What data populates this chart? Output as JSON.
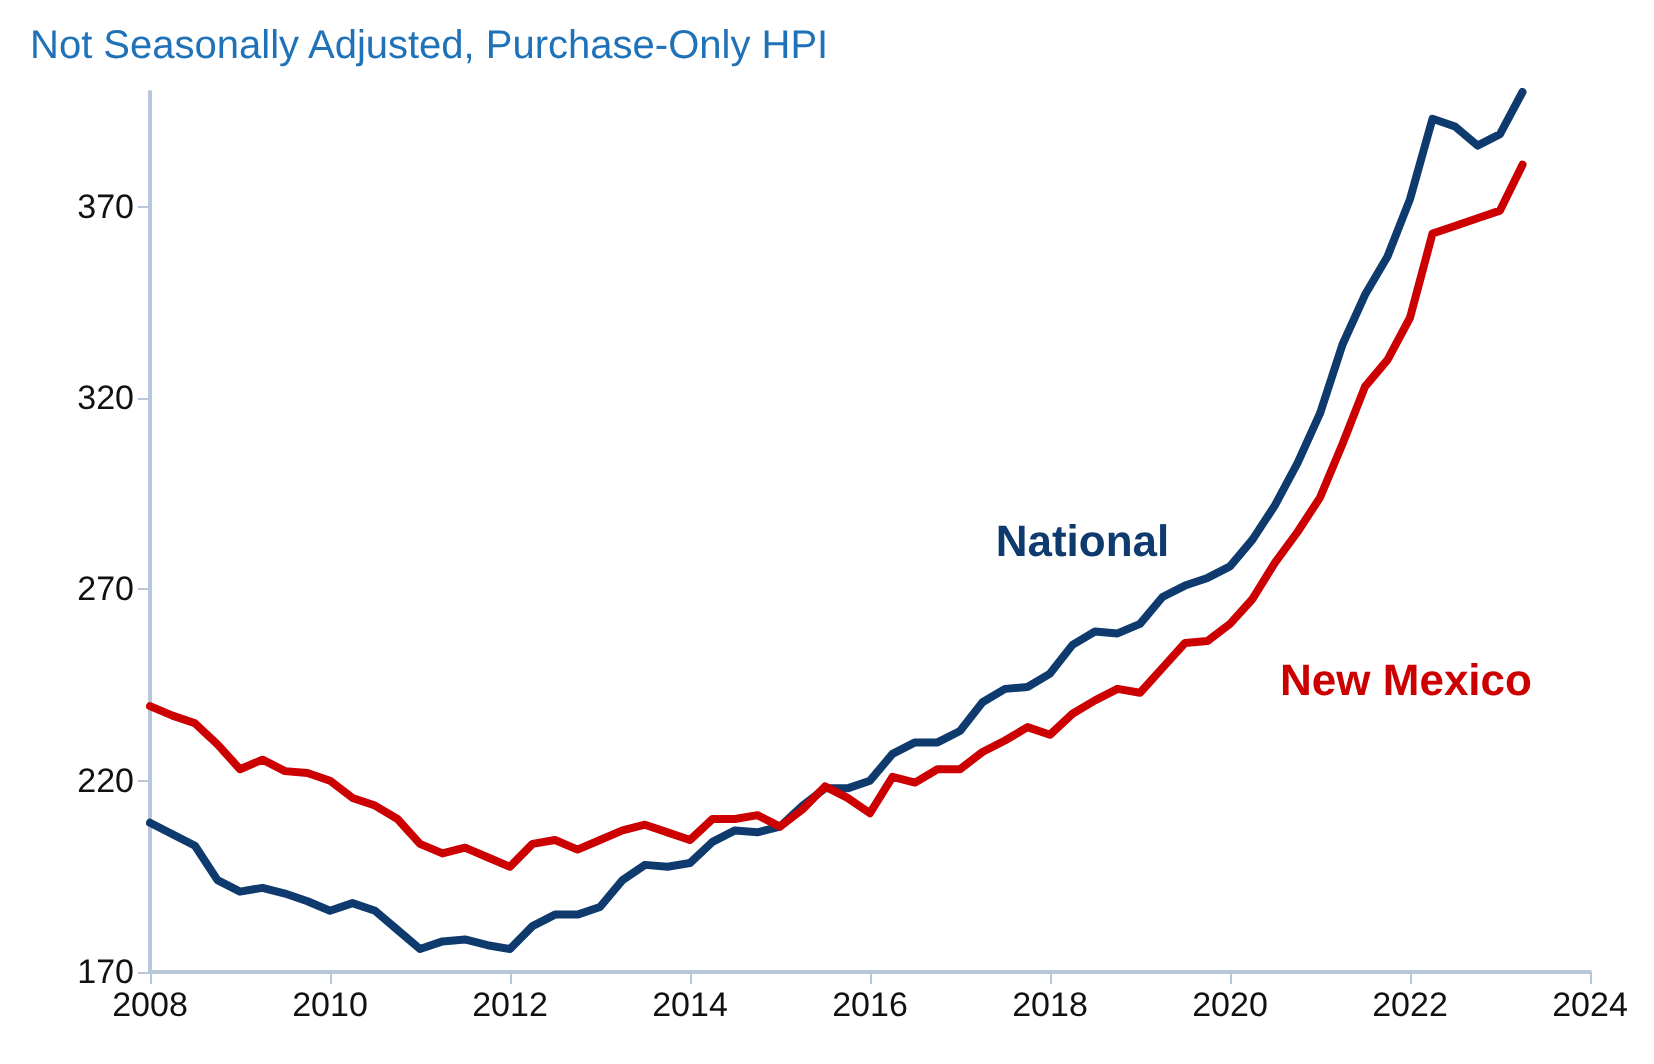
{
  "chart_data": {
    "type": "line",
    "subtitle": "Not Seasonally Adjusted, Purchase-Only HPI",
    "x": [
      2008,
      2008.25,
      2008.5,
      2008.75,
      2009,
      2009.25,
      2009.5,
      2009.75,
      2010,
      2010.25,
      2010.5,
      2010.75,
      2011,
      2011.25,
      2011.5,
      2011.75,
      2012,
      2012.25,
      2012.5,
      2012.75,
      2013,
      2013.25,
      2013.5,
      2013.75,
      2014,
      2014.25,
      2014.5,
      2014.75,
      2015,
      2015.25,
      2015.5,
      2015.75,
      2016,
      2016.25,
      2016.5,
      2016.75,
      2017,
      2017.25,
      2017.5,
      2017.75,
      2018,
      2018.25,
      2018.5,
      2018.75,
      2019,
      2019.25,
      2019.5,
      2019.75,
      2020,
      2020.25,
      2020.5,
      2020.75,
      2021,
      2021.25,
      2021.5,
      2021.75,
      2022,
      2022.25,
      2022.5,
      2022.75,
      2023,
      2023.25
    ],
    "series": [
      {
        "name": "National",
        "color": "#0e3a6e",
        "values": [
          209,
          206,
          203,
          194,
          191,
          192,
          190.5,
          188.5,
          186,
          188,
          186,
          181,
          176,
          178,
          178.5,
          177,
          176,
          182,
          185,
          185,
          187,
          194,
          198,
          197.5,
          198.5,
          204,
          207,
          206.5,
          208,
          213.5,
          218,
          218,
          220,
          227,
          230,
          230,
          233,
          240.5,
          244,
          244.5,
          248,
          255.5,
          259,
          258.5,
          261,
          268,
          271,
          273,
          276,
          283,
          292,
          303,
          316,
          334,
          347,
          357,
          372,
          393,
          391,
          386,
          389,
          400
        ]
      },
      {
        "name": "New Mexico",
        "color": "#cc0000",
        "values": [
          239.5,
          237,
          235,
          229.5,
          223,
          225.5,
          222.5,
          222,
          220,
          215.5,
          213.5,
          210,
          203.5,
          201,
          202.5,
          200,
          197.5,
          203.5,
          204.5,
          202,
          204.5,
          207,
          208.5,
          206.5,
          204.5,
          210,
          210,
          211,
          208,
          212.5,
          218.5,
          215.5,
          211.5,
          221,
          219.5,
          223,
          223,
          227.5,
          230.5,
          234,
          232,
          237.5,
          241,
          244,
          243,
          249.5,
          256,
          256.5,
          261,
          267.5,
          277,
          285,
          294,
          308,
          323,
          330,
          341,
          363,
          365,
          367,
          369,
          381
        ]
      }
    ],
    "xlim": [
      2008,
      2024
    ],
    "xticks": [
      2008,
      2010,
      2012,
      2014,
      2016,
      2018,
      2020,
      2022,
      2024
    ],
    "ylim": [
      170,
      400
    ],
    "yticks": [
      170,
      220,
      270,
      320,
      370
    ],
    "grid": false,
    "line_style": "solid"
  }
}
